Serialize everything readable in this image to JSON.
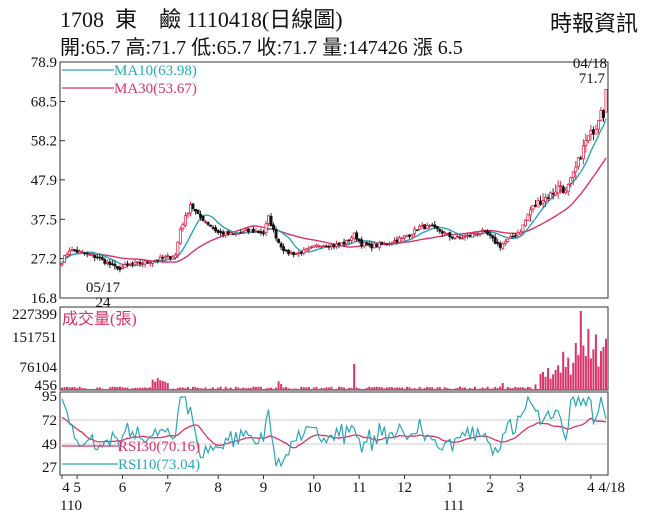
{
  "header": {
    "title": "1708  東    鹼 1110418(日線圖)",
    "source": "時報資訊",
    "stats": "開:65.7 高:71.7 低:65.7 收:71.7 量:147426 漲 6.5"
  },
  "colors": {
    "up": "#d9133a",
    "down": "#111111",
    "ma10": "#2aa6b8",
    "ma30": "#d9336a",
    "volume": "#d9336a",
    "rsi10": "#2aa6b8",
    "rsi30": "#d9336a",
    "frame": "#333333",
    "grid": "#bbbbbb"
  },
  "chart_data": [
    {
      "type": "candlestick",
      "title": "",
      "y_ticks": [
        "78.9",
        "68.5",
        "58.2",
        "47.9",
        "37.5",
        "27.2",
        "16.8"
      ],
      "ylim": [
        16.8,
        78.9
      ],
      "legend": [
        {
          "label": "MA10(63.98)",
          "color": "#2aa6b8"
        },
        {
          "label": "MA30(53.67)",
          "color": "#d9336a"
        }
      ],
      "annotations": [
        {
          "text": "04/18",
          "at": "last",
          "value": 71.7
        },
        {
          "text": "71.7",
          "at": "last",
          "value": 71.7
        },
        {
          "text": "05/17",
          "at": "low",
          "value": 24
        },
        {
          "text": "24",
          "at": "low",
          "value": 24
        }
      ],
      "anchors": [
        {
          "x": 0,
          "p": 26.5
        },
        {
          "x": 3,
          "p": 29.5
        },
        {
          "x": 9,
          "p": 28.5
        },
        {
          "x": 14,
          "p": 27.5
        },
        {
          "x": 18,
          "p": 26
        },
        {
          "x": 22,
          "p": 24.5
        },
        {
          "x": 27,
          "p": 25.5
        },
        {
          "x": 35,
          "p": 26.5
        },
        {
          "x": 45,
          "p": 28
        },
        {
          "x": 47,
          "p": 35
        },
        {
          "x": 50,
          "p": 39.5
        },
        {
          "x": 51,
          "p": 41.5
        },
        {
          "x": 54,
          "p": 38.5
        },
        {
          "x": 57,
          "p": 37
        },
        {
          "x": 62,
          "p": 34
        },
        {
          "x": 68,
          "p": 33.5
        },
        {
          "x": 75,
          "p": 34.5
        },
        {
          "x": 80,
          "p": 34
        },
        {
          "x": 82,
          "p": 38
        },
        {
          "x": 84,
          "p": 34.5
        },
        {
          "x": 86,
          "p": 31.5
        },
        {
          "x": 89,
          "p": 28.8
        },
        {
          "x": 93,
          "p": 28.5
        },
        {
          "x": 98,
          "p": 29.5
        },
        {
          "x": 103,
          "p": 31
        },
        {
          "x": 108,
          "p": 30.5
        },
        {
          "x": 113,
          "p": 31.5
        },
        {
          "x": 116,
          "p": 33.5
        },
        {
          "x": 119,
          "p": 31
        },
        {
          "x": 123,
          "p": 30.5
        },
        {
          "x": 128,
          "p": 31
        },
        {
          "x": 133,
          "p": 32
        },
        {
          "x": 138,
          "p": 33.5
        },
        {
          "x": 142,
          "p": 35.5
        },
        {
          "x": 146,
          "p": 35.5
        },
        {
          "x": 150,
          "p": 34.5
        },
        {
          "x": 154,
          "p": 33
        },
        {
          "x": 158,
          "p": 32.5
        },
        {
          "x": 163,
          "p": 33.5
        },
        {
          "x": 166,
          "p": 34.5
        },
        {
          "x": 169,
          "p": 33.5
        },
        {
          "x": 172,
          "p": 31.5
        },
        {
          "x": 174,
          "p": 30.5
        },
        {
          "x": 178,
          "p": 32.5
        },
        {
          "x": 182,
          "p": 34.5
        },
        {
          "x": 186,
          "p": 40
        },
        {
          "x": 190,
          "p": 42.5
        },
        {
          "x": 194,
          "p": 44
        },
        {
          "x": 198,
          "p": 46.5
        },
        {
          "x": 200,
          "p": 44.5
        },
        {
          "x": 203,
          "p": 49
        },
        {
          "x": 206,
          "p": 54.5
        },
        {
          "x": 208,
          "p": 58
        },
        {
          "x": 210,
          "p": 60
        },
        {
          "x": 212,
          "p": 62
        },
        {
          "x": 214,
          "p": 67
        },
        {
          "x": 215,
          "p": 65.2
        },
        {
          "x": 216,
          "p": 71.7
        }
      ],
      "ma10_last": 63.98,
      "ma30_last": 53.67
    },
    {
      "type": "bar",
      "title": "成交量(張)",
      "y_ticks": [
        "227399",
        "151751",
        "76104",
        "456"
      ],
      "ylim": [
        456,
        227399
      ],
      "spikes": [
        {
          "x": 36,
          "v": 30000
        },
        {
          "x": 37,
          "v": 24000
        },
        {
          "x": 38,
          "v": 34000
        },
        {
          "x": 39,
          "v": 28000
        },
        {
          "x": 40,
          "v": 26000
        },
        {
          "x": 41,
          "v": 24000
        },
        {
          "x": 42,
          "v": 20000
        },
        {
          "x": 86,
          "v": 25000
        },
        {
          "x": 87,
          "v": 17000
        },
        {
          "x": 116,
          "v": 75000
        },
        {
          "x": 175,
          "v": 20000
        },
        {
          "x": 188,
          "v": 16000
        },
        {
          "x": 190,
          "v": 46000
        },
        {
          "x": 191,
          "v": 52000
        },
        {
          "x": 192,
          "v": 38000
        },
        {
          "x": 193,
          "v": 63000
        },
        {
          "x": 194,
          "v": 33000
        },
        {
          "x": 195,
          "v": 45000
        },
        {
          "x": 196,
          "v": 58000
        },
        {
          "x": 197,
          "v": 71000
        },
        {
          "x": 198,
          "v": 50000
        },
        {
          "x": 199,
          "v": 110000
        },
        {
          "x": 200,
          "v": 66000
        },
        {
          "x": 201,
          "v": 93000
        },
        {
          "x": 202,
          "v": 44000
        },
        {
          "x": 203,
          "v": 78000
        },
        {
          "x": 204,
          "v": 135000
        },
        {
          "x": 205,
          "v": 101000
        },
        {
          "x": 206,
          "v": 227399
        },
        {
          "x": 207,
          "v": 128000
        },
        {
          "x": 208,
          "v": 98000
        },
        {
          "x": 209,
          "v": 176000
        },
        {
          "x": 210,
          "v": 91000
        },
        {
          "x": 211,
          "v": 117000
        },
        {
          "x": 212,
          "v": 160000
        },
        {
          "x": 213,
          "v": 68000
        },
        {
          "x": 214,
          "v": 112000
        },
        {
          "x": 215,
          "v": 124000
        },
        {
          "x": 216,
          "v": 147426
        }
      ]
    },
    {
      "type": "line",
      "title": "",
      "y_ticks": [
        "95",
        "72",
        "49",
        "27"
      ],
      "ylim": [
        27,
        95
      ],
      "series": [
        {
          "name": "RSI30(70.16)",
          "color": "#d9336a",
          "last": 70.16
        },
        {
          "name": "RSI10(73.04)",
          "color": "#2aa6b8",
          "last": 73.04
        }
      ],
      "x_ticks": [
        {
          "x": 0,
          "label": "4"
        },
        {
          "x": 6,
          "label": "5"
        },
        {
          "x": 24,
          "label": "6"
        },
        {
          "x": 42,
          "label": "7"
        },
        {
          "x": 62,
          "label": "8"
        },
        {
          "x": 80,
          "label": "9"
        },
        {
          "x": 100,
          "label": "10"
        },
        {
          "x": 118,
          "label": "11"
        },
        {
          "x": 136,
          "label": "12"
        },
        {
          "x": 154,
          "label": "1"
        },
        {
          "x": 170,
          "label": "2"
        },
        {
          "x": 182,
          "label": "3"
        },
        {
          "x": 210,
          "label": "4"
        }
      ],
      "x_end_label": "4/18",
      "x_sublabels": [
        {
          "x": 2,
          "label": "110"
        },
        {
          "x": 154,
          "label": "111"
        }
      ]
    }
  ]
}
